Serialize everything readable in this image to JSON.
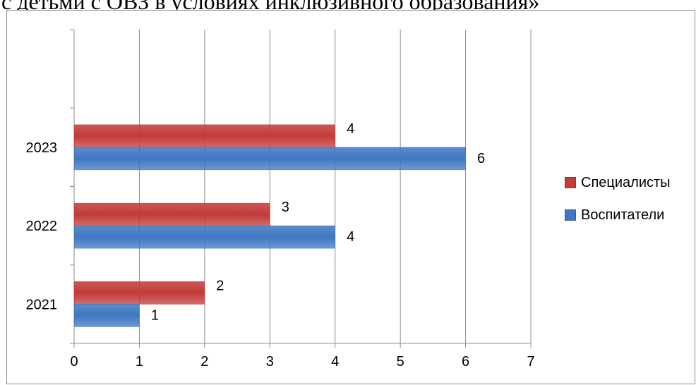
{
  "header_text": "с детьми с ОВЗ в условиях инклюзивного образования»",
  "chart_data": {
    "type": "bar",
    "orientation": "horizontal",
    "categories": [
      "2021",
      "2022",
      "2023"
    ],
    "series": [
      {
        "name": "Воспитатели",
        "values": [
          1,
          4,
          6
        ],
        "color": "#3f77c2"
      },
      {
        "name": "Специалисты",
        "values": [
          2,
          3,
          4
        ],
        "color": "#c23b38"
      }
    ],
    "xlim": [
      0,
      7
    ],
    "xticks": [
      "0",
      "1",
      "2",
      "3",
      "4",
      "5",
      "6",
      "7"
    ],
    "grid": "vertical",
    "legend": "right"
  }
}
